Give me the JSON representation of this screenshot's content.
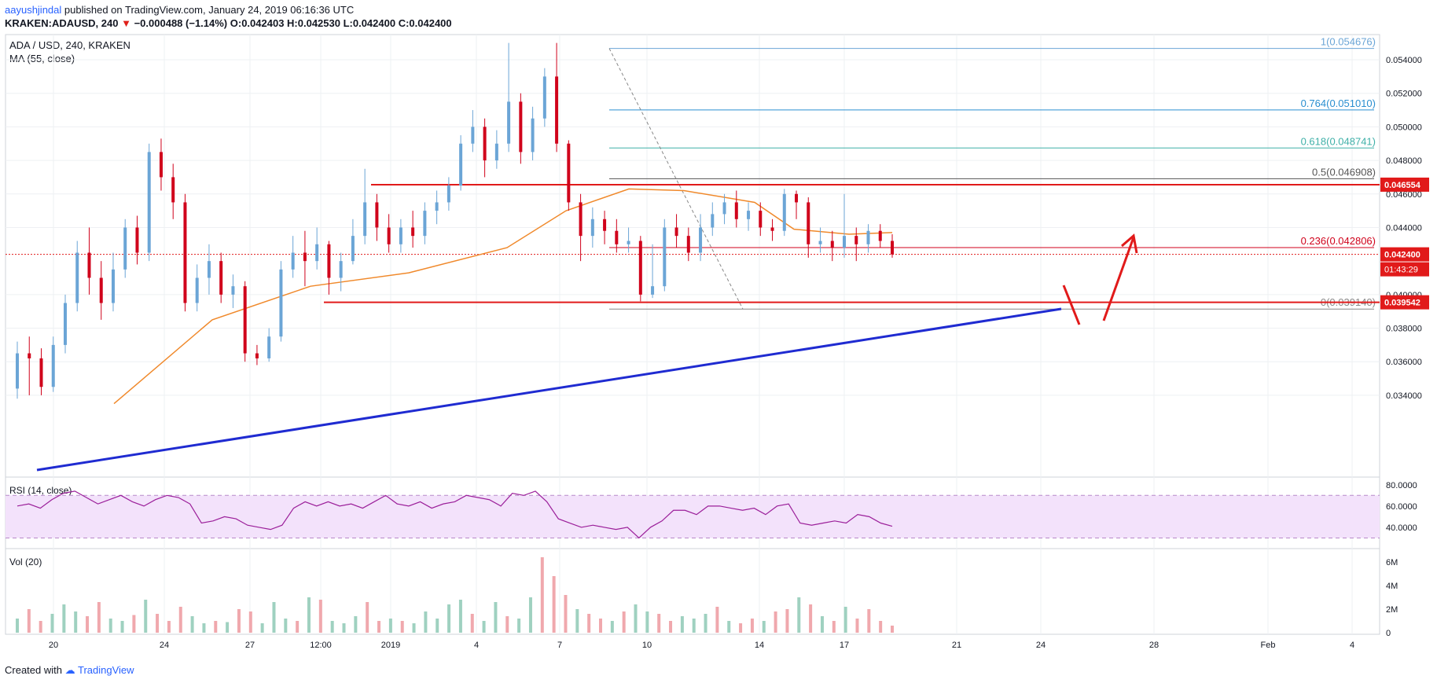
{
  "header": {
    "author": "aayushjindal",
    "published_text": "published on TradingView.com, January 24, 2019 06:16:36 UTC",
    "symbol_line": "KRAKEN:ADAUSD, 240",
    "change_marker": "▼",
    "change_text": "−0.000488 (−1.14%)",
    "ohlc_text": "O:0.042403 H:0.042530 L:0.042400 C:0.042400"
  },
  "legend": {
    "symbol": "ADA / USD, 240, KRAKEN",
    "ma": "MA (55, close)",
    "rsi": "RSI (14, close)",
    "vol": "Vol (20)"
  },
  "footer": {
    "created_with": "Created with",
    "brand": "TradingView"
  },
  "colors": {
    "up": "#6ba5d6",
    "down": "#d0021b",
    "ma": "#f0892b",
    "support": "#e11a1a",
    "trendline": "#1f2bd1",
    "fib": "#3fb0a8",
    "rsi": "#9b1f9a",
    "rsi_band": "#f3e2fb",
    "price_tag": "#e11a1a"
  },
  "chart_data": [
    {
      "type": "candlestick",
      "title": "ADA / USD, 240, KRAKEN",
      "ylim": [
        0.0332,
        0.0555
      ],
      "y_ticks": [
        "0.054000",
        "0.052000",
        "0.050000",
        "0.048000",
        "0.046000",
        "0.044000",
        "0.040000",
        "0.038000",
        "0.036000",
        "0.034000"
      ],
      "x_ticks": [
        "20",
        "24",
        "27",
        "12:00",
        "2019",
        "4",
        "7",
        "10",
        "14",
        "17",
        "21",
        "24",
        "28",
        "Feb",
        "4"
      ],
      "candles_summary": "4-hour ADA/USD candles from Dec 18 2018 to Jan 24 2019",
      "series": [
        {
          "name": "MA (55, close)",
          "x": [
            "Dec 22",
            "Dec 26",
            "Dec 30",
            "Jan 3",
            "Jan 7",
            "Jan 9",
            "Jan 11",
            "Jan 14",
            "Jan 17",
            "Jan 19",
            "Jan 21",
            "Jan 24"
          ],
          "values": [
            0.0335,
            0.0385,
            0.0405,
            0.0413,
            0.0428,
            0.045,
            0.0463,
            0.0462,
            0.0455,
            0.0439,
            0.0436,
            0.0437
          ]
        }
      ],
      "candles": [
        [
          "Dec 18",
          0.0344,
          0.0365,
          0.0372,
          0.0338
        ],
        [
          "Dec 19",
          0.0365,
          0.0362,
          0.0375,
          0.034
        ],
        [
          "Dec 19b",
          0.0362,
          0.0345,
          0.0368,
          0.034
        ],
        [
          "Dec 20",
          0.0345,
          0.037,
          0.0375,
          0.0342
        ],
        [
          "Dec 20b",
          0.037,
          0.0395,
          0.04,
          0.0365
        ],
        [
          "Dec 21",
          0.0395,
          0.0425,
          0.0432,
          0.039
        ],
        [
          "Dec 21b",
          0.0425,
          0.041,
          0.044,
          0.04
        ],
        [
          "Dec 22",
          0.041,
          0.0395,
          0.042,
          0.0385
        ],
        [
          "Dec 22b",
          0.0395,
          0.0415,
          0.0425,
          0.039
        ],
        [
          "Dec 23",
          0.0415,
          0.044,
          0.0445,
          0.041
        ],
        [
          "Dec 23b",
          0.044,
          0.0425,
          0.0447,
          0.0418
        ],
        [
          "Dec 24",
          0.0425,
          0.0485,
          0.049,
          0.042
        ],
        [
          "Dec 24b",
          0.0485,
          0.047,
          0.0493,
          0.0462
        ],
        [
          "Dec 25",
          0.047,
          0.0455,
          0.0478,
          0.0445
        ],
        [
          "Dec 25b",
          0.0455,
          0.0395,
          0.046,
          0.039
        ],
        [
          "Dec 26",
          0.0395,
          0.041,
          0.0418,
          0.039
        ],
        [
          "Dec 26b",
          0.041,
          0.042,
          0.043,
          0.04
        ],
        [
          "Dec 27",
          0.042,
          0.04,
          0.0425,
          0.0395
        ],
        [
          "Dec 27b",
          0.04,
          0.0405,
          0.0412,
          0.0392
        ],
        [
          "Dec 28",
          0.0405,
          0.0365,
          0.0408,
          0.036
        ],
        [
          "Dec 28b",
          0.0365,
          0.0362,
          0.037,
          0.0358
        ],
        [
          "Dec 29",
          0.0362,
          0.0375,
          0.038,
          0.036
        ],
        [
          "Dec 29b",
          0.0375,
          0.0415,
          0.042,
          0.0372
        ],
        [
          "Dec 30",
          0.0415,
          0.0425,
          0.0435,
          0.041
        ],
        [
          "Dec 30b",
          0.0425,
          0.042,
          0.0438,
          0.0405
        ],
        [
          "Dec 31",
          0.042,
          0.043,
          0.044,
          0.0415
        ],
        [
          "Dec 31b",
          0.043,
          0.041,
          0.0432,
          0.04
        ],
        [
          "Jan 1",
          0.041,
          0.042,
          0.0425,
          0.0402
        ],
        [
          "Jan 1b",
          0.042,
          0.0435,
          0.0445,
          0.0418
        ],
        [
          "Jan 2",
          0.0435,
          0.0455,
          0.0475,
          0.043
        ],
        [
          "Jan 2b",
          0.0455,
          0.044,
          0.046,
          0.0432
        ],
        [
          "Jan 3",
          0.044,
          0.043,
          0.0448,
          0.0425
        ],
        [
          "Jan 3b",
          0.043,
          0.044,
          0.0445,
          0.0425
        ],
        [
          "Jan 4",
          0.044,
          0.0435,
          0.045,
          0.0428
        ],
        [
          "Jan 4b",
          0.0435,
          0.045,
          0.0455,
          0.043
        ],
        [
          "Jan 5",
          0.045,
          0.0455,
          0.0462,
          0.0442
        ],
        [
          "Jan 5b",
          0.0455,
          0.0465,
          0.047,
          0.045
        ],
        [
          "Jan 6",
          0.0465,
          0.049,
          0.0495,
          0.0462
        ],
        [
          "Jan 6b",
          0.049,
          0.05,
          0.051,
          0.0485
        ],
        [
          "Jan 7",
          0.05,
          0.048,
          0.0505,
          0.047
        ],
        [
          "Jan 7b",
          0.048,
          0.049,
          0.0498,
          0.0475
        ],
        [
          "Jan 8",
          0.049,
          0.0515,
          0.055,
          0.0485
        ],
        [
          "Jan 8b",
          0.0515,
          0.0485,
          0.052,
          0.0478
        ],
        [
          "Jan 9",
          0.0485,
          0.0505,
          0.0512,
          0.048
        ],
        [
          "Jan 9b",
          0.0505,
          0.053,
          0.0535,
          0.05
        ],
        [
          "Jan 10",
          0.053,
          0.049,
          0.055,
          0.0485
        ],
        [
          "Jan 10b",
          0.049,
          0.0455,
          0.0492,
          0.045
        ],
        [
          "Jan 11",
          0.0455,
          0.0435,
          0.046,
          0.042
        ],
        [
          "Jan 11b",
          0.0435,
          0.0445,
          0.0452,
          0.0428
        ],
        [
          "Jan 12",
          0.0445,
          0.0438,
          0.045,
          0.043
        ],
        [
          "Jan 12b",
          0.0438,
          0.043,
          0.0445,
          0.0425
        ],
        [
          "Jan 13",
          0.043,
          0.0432,
          0.044,
          0.0425
        ],
        [
          "Jan 13b",
          0.0432,
          0.04,
          0.0435,
          0.0396
        ],
        [
          "Jan 14",
          0.04,
          0.0405,
          0.043,
          0.0398
        ],
        [
          "Jan 14b",
          0.0405,
          0.044,
          0.0445,
          0.0402
        ],
        [
          "Jan 15",
          0.044,
          0.0435,
          0.0448,
          0.0428
        ],
        [
          "Jan 15b",
          0.0435,
          0.0425,
          0.044,
          0.042
        ],
        [
          "Jan 16",
          0.0425,
          0.044,
          0.0448,
          0.042
        ],
        [
          "Jan 16b",
          0.044,
          0.0448,
          0.0455,
          0.0435
        ],
        [
          "Jan 17",
          0.0448,
          0.0455,
          0.046,
          0.0442
        ],
        [
          "Jan 17b",
          0.0455,
          0.0445,
          0.0462,
          0.044
        ],
        [
          "Jan 18",
          0.0445,
          0.045,
          0.0455,
          0.0438
        ],
        [
          "Jan 18b",
          0.045,
          0.044,
          0.0455,
          0.0435
        ],
        [
          "Jan 19",
          0.044,
          0.0438,
          0.0445,
          0.0432
        ],
        [
          "Jan 19b",
          0.0438,
          0.046,
          0.0463,
          0.0435
        ],
        [
          "Jan 20",
          0.046,
          0.0455,
          0.0462,
          0.0445
        ],
        [
          "Jan 20b",
          0.0455,
          0.043,
          0.0458,
          0.0422
        ],
        [
          "Jan 21",
          0.043,
          0.0432,
          0.044,
          0.0425
        ],
        [
          "Jan 21b",
          0.0432,
          0.0428,
          0.0438,
          0.042
        ],
        [
          "Jan 22",
          0.0428,
          0.0435,
          0.046,
          0.0422
        ],
        [
          "Jan 22b",
          0.0435,
          0.043,
          0.044,
          0.042
        ],
        [
          "Jan 23",
          0.043,
          0.0438,
          0.0442,
          0.0425
        ],
        [
          "Jan 23b",
          0.0438,
          0.0432,
          0.0442,
          0.0428
        ],
        [
          "Jan 24",
          0.0432,
          0.0424,
          0.0436,
          0.0422
        ]
      ]
    },
    {
      "type": "line",
      "title": "RSI (14, close)",
      "ylim": [
        20,
        85
      ],
      "y_ticks": [
        "80.0000",
        "60.0000",
        "40.0000"
      ],
      "bands": [
        70,
        30
      ],
      "series": [
        {
          "name": "RSI (14, close)",
          "values": [
            60,
            62,
            58,
            66,
            72,
            74,
            68,
            62,
            66,
            70,
            64,
            60,
            66,
            70,
            68,
            62,
            44,
            46,
            50,
            48,
            42,
            40,
            38,
            42,
            58,
            64,
            60,
            64,
            60,
            62,
            58,
            64,
            70,
            62,
            60,
            64,
            58,
            62,
            64,
            70,
            68,
            66,
            60,
            72,
            70,
            74,
            64,
            48,
            44,
            40,
            42,
            40,
            38,
            40,
            30,
            40,
            46,
            56,
            56,
            52,
            60,
            60,
            58,
            56,
            58,
            52,
            60,
            62,
            44,
            42,
            44,
            46,
            44,
            52,
            50,
            44,
            41
          ]
        }
      ]
    },
    {
      "type": "bar",
      "title": "Vol (20)",
      "ylim": [
        0,
        7
      ],
      "y_ticks": [
        "6M",
        "4M",
        "2M",
        "0"
      ],
      "series": [
        {
          "name": "Vol (20)",
          "values": [
            1.2,
            2.0,
            1.0,
            1.6,
            2.4,
            1.8,
            1.4,
            2.6,
            1.2,
            1.0,
            1.5,
            2.8,
            1.6,
            1.0,
            2.2,
            1.4,
            0.8,
            1.0,
            0.9,
            2.0,
            1.8,
            0.8,
            2.6,
            1.2,
            1.0,
            3.0,
            2.8,
            1.0,
            0.8,
            1.4,
            2.6,
            1.0,
            1.2,
            1.0,
            0.8,
            1.8,
            1.2,
            2.4,
            2.8,
            1.6,
            1.0,
            2.6,
            1.4,
            1.2,
            3.0,
            6.4,
            4.8,
            3.2,
            2.0,
            1.6,
            1.2,
            1.0,
            1.8,
            2.4,
            1.8,
            1.6,
            1.0,
            1.4,
            1.2,
            1.6,
            2.2,
            1.0,
            0.8,
            1.2,
            1.0,
            1.8,
            2.0,
            3.0,
            2.4,
            1.4,
            1.0,
            2.2,
            1.2,
            2.0,
            1.0,
            0.6
          ]
        }
      ]
    }
  ],
  "annotations": {
    "fib": [
      {
        "label": "1(0.054676)",
        "value": 0.054676
      },
      {
        "label": "0.764(0.051010)",
        "value": 0.05101
      },
      {
        "label": "0.618(0.048741)",
        "value": 0.048741
      },
      {
        "label": "0.5(0.046908)",
        "value": 0.046908
      },
      {
        "label": "0.236(0.042806)",
        "value": 0.042806
      },
      {
        "label": "0(0.039140)",
        "value": 0.03914
      }
    ],
    "resistance": {
      "value": 0.046554,
      "label": "0.046554"
    },
    "support": {
      "value": 0.039542,
      "label": "0.039542"
    },
    "current_price": {
      "value": 0.0424,
      "label": "0.042400",
      "countdown": "01:43:29"
    }
  }
}
